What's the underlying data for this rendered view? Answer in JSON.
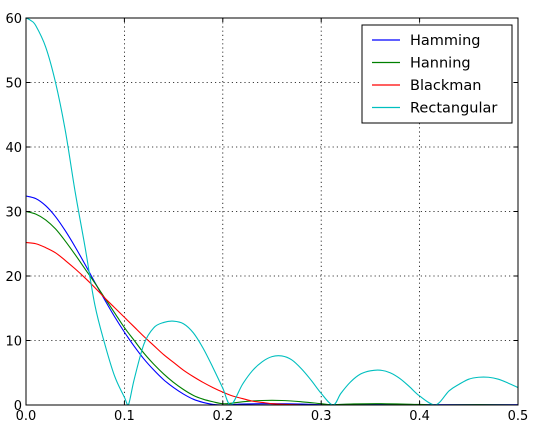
{
  "chart_data": {
    "type": "line",
    "title": "",
    "xlabel": "",
    "ylabel": "",
    "xlim": [
      0.0,
      0.5
    ],
    "ylim": [
      0,
      60
    ],
    "x_ticks": [
      0.0,
      0.1,
      0.2,
      0.3,
      0.4,
      0.5
    ],
    "x_tick_labels": [
      "0.0",
      "0.1",
      "0.2",
      "0.3",
      "0.4",
      "0.5"
    ],
    "y_ticks": [
      0,
      10,
      20,
      30,
      40,
      50,
      60
    ],
    "y_tick_labels": [
      "0",
      "10",
      "20",
      "30",
      "40",
      "50",
      "60"
    ],
    "grid": true,
    "legend_position": "top-right",
    "series": [
      {
        "name": "Hamming",
        "color": "#0000ff",
        "x": [
          0.0,
          0.01,
          0.02,
          0.03,
          0.04,
          0.05,
          0.06,
          0.07,
          0.08,
          0.09,
          0.1,
          0.11,
          0.12,
          0.13,
          0.14,
          0.15,
          0.16,
          0.17,
          0.18,
          0.19,
          0.2,
          0.21,
          0.22,
          0.25,
          0.28,
          0.3,
          0.35,
          0.4,
          0.45,
          0.5
        ],
        "values": [
          32.4,
          32.0,
          30.9,
          29.2,
          27.0,
          24.5,
          21.8,
          19.0,
          16.3,
          13.7,
          11.3,
          9.1,
          7.1,
          5.4,
          3.9,
          2.7,
          1.7,
          0.9,
          0.4,
          0.1,
          0.0,
          0.05,
          0.15,
          0.2,
          0.15,
          0.05,
          0.1,
          0.05,
          0.05,
          0.05
        ]
      },
      {
        "name": "Hanning",
        "color": "#008000",
        "x": [
          0.0,
          0.01,
          0.02,
          0.03,
          0.04,
          0.05,
          0.06,
          0.07,
          0.08,
          0.09,
          0.1,
          0.11,
          0.12,
          0.13,
          0.14,
          0.15,
          0.16,
          0.17,
          0.18,
          0.19,
          0.2,
          0.21,
          0.22,
          0.24,
          0.26,
          0.28,
          0.3,
          0.31,
          0.33,
          0.36,
          0.4,
          0.42,
          0.46,
          0.5
        ],
        "values": [
          30.0,
          29.6,
          28.7,
          27.3,
          25.4,
          23.3,
          21.1,
          18.9,
          16.6,
          14.3,
          12.0,
          10.0,
          8.0,
          6.3,
          4.8,
          3.5,
          2.4,
          1.5,
          0.9,
          0.5,
          0.2,
          0.3,
          0.5,
          0.7,
          0.7,
          0.5,
          0.2,
          0.05,
          0.15,
          0.2,
          0.08,
          0.0,
          0.05,
          0.0
        ]
      },
      {
        "name": "Blackman",
        "color": "#ff0000",
        "x": [
          0.0,
          0.01,
          0.02,
          0.03,
          0.04,
          0.05,
          0.06,
          0.07,
          0.08,
          0.09,
          0.1,
          0.11,
          0.12,
          0.13,
          0.14,
          0.15,
          0.16,
          0.17,
          0.18,
          0.19,
          0.2,
          0.21,
          0.22,
          0.23,
          0.24,
          0.25,
          0.26,
          0.28,
          0.3,
          0.5
        ],
        "values": [
          25.2,
          25.0,
          24.4,
          23.6,
          22.4,
          21.1,
          19.7,
          18.2,
          16.6,
          15.1,
          13.6,
          12.1,
          10.6,
          9.2,
          7.8,
          6.6,
          5.4,
          4.4,
          3.5,
          2.7,
          2.0,
          1.4,
          1.0,
          0.6,
          0.4,
          0.2,
          0.1,
          0.0,
          0.0,
          0.0
        ]
      },
      {
        "name": "Rectangular",
        "color": "#00bfbf",
        "x": [
          0.0,
          0.005,
          0.01,
          0.02,
          0.03,
          0.04,
          0.05,
          0.06,
          0.07,
          0.08,
          0.09,
          0.1,
          0.104,
          0.11,
          0.12,
          0.13,
          0.14,
          0.15,
          0.16,
          0.17,
          0.18,
          0.19,
          0.2,
          0.208,
          0.22,
          0.23,
          0.24,
          0.25,
          0.26,
          0.27,
          0.28,
          0.29,
          0.3,
          0.312,
          0.32,
          0.33,
          0.34,
          0.35,
          0.36,
          0.37,
          0.38,
          0.39,
          0.4,
          0.416,
          0.43,
          0.44,
          0.45,
          0.46,
          0.47,
          0.48,
          0.49,
          0.5
        ],
        "values": [
          60.0,
          59.6,
          58.8,
          55.5,
          50.0,
          42.5,
          33.0,
          24.5,
          15.5,
          9.5,
          4.5,
          1.2,
          0.0,
          4.0,
          9.5,
          12.0,
          12.8,
          13.0,
          12.6,
          11.2,
          8.8,
          5.8,
          2.6,
          0.0,
          3.2,
          5.3,
          6.7,
          7.5,
          7.6,
          7.0,
          5.6,
          3.8,
          1.8,
          0.0,
          1.8,
          3.6,
          4.8,
          5.3,
          5.4,
          5.0,
          4.1,
          2.8,
          1.4,
          0.0,
          2.2,
          3.2,
          4.0,
          4.3,
          4.3,
          4.0,
          3.4,
          2.7
        ]
      }
    ]
  }
}
